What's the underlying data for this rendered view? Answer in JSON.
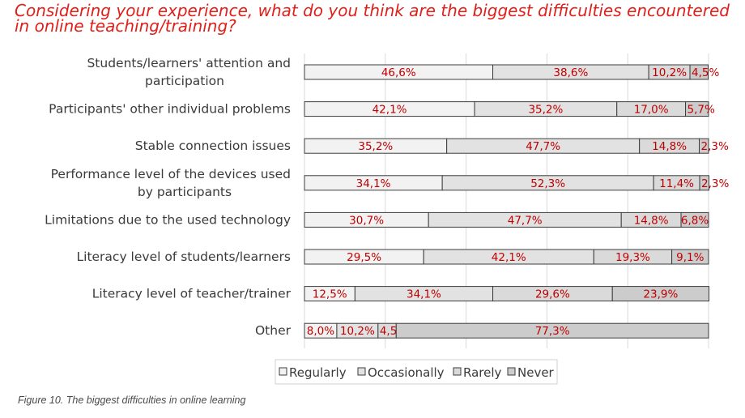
{
  "title": "Considering your experience, what do you think are the biggest difficulties encountered in online teaching/training?",
  "caption": "Figure 10. The biggest difficulties in online learning",
  "chart_data": {
    "type": "bar",
    "orientation": "horizontal",
    "stacked": true,
    "categories": [
      [
        "Students/learners' attention and",
        "participation"
      ],
      [
        "Participants' other individual problems"
      ],
      [
        "Stable connection issues"
      ],
      [
        "Performance level of the devices used",
        "by participants"
      ],
      [
        "Limitations due to the used technology"
      ],
      [
        "Literacy level of students/learners"
      ],
      [
        "Literacy level of teacher/trainer"
      ],
      [
        "Other"
      ]
    ],
    "series": [
      {
        "name": "Regularly",
        "color": "#f2f2f2",
        "values": [
          46.6,
          42.1,
          35.2,
          34.1,
          30.7,
          29.5,
          12.5,
          8.0
        ],
        "labels": [
          "46,6%",
          "42,1%",
          "35,2%",
          "34,1%",
          "30,7%",
          "29,5%",
          "12,5%",
          "8,0%"
        ]
      },
      {
        "name": "Occasionally",
        "color": "#e2e2e2",
        "values": [
          38.6,
          35.2,
          47.7,
          52.3,
          47.7,
          42.1,
          34.1,
          10.2
        ],
        "labels": [
          "38,6%",
          "35,2%",
          "47,7%",
          "52,3%",
          "47,7%",
          "42,1%",
          "34,1%",
          "10,2%"
        ]
      },
      {
        "name": "Rarely",
        "color": "#dadada",
        "values": [
          10.2,
          17.0,
          14.8,
          11.4,
          14.8,
          19.3,
          29.6,
          4.5
        ],
        "labels": [
          "10,2%",
          "17,0%",
          "14,8%",
          "11,4%",
          "14,8%",
          "19,3%",
          "29,6%",
          "4,5%"
        ]
      },
      {
        "name": "Never",
        "color": "#cccccc",
        "values": [
          4.5,
          5.7,
          2.3,
          2.3,
          6.8,
          9.1,
          23.9,
          77.3
        ],
        "labels": [
          "4,5%",
          "5,7%",
          "2,3%",
          "2,3%",
          "6,8%",
          "9,1%",
          "23,9%",
          "77,3%"
        ]
      }
    ],
    "xlim": [
      0,
      100
    ],
    "grid": true,
    "legend_position": "bottom",
    "label_color": "#c00000"
  }
}
